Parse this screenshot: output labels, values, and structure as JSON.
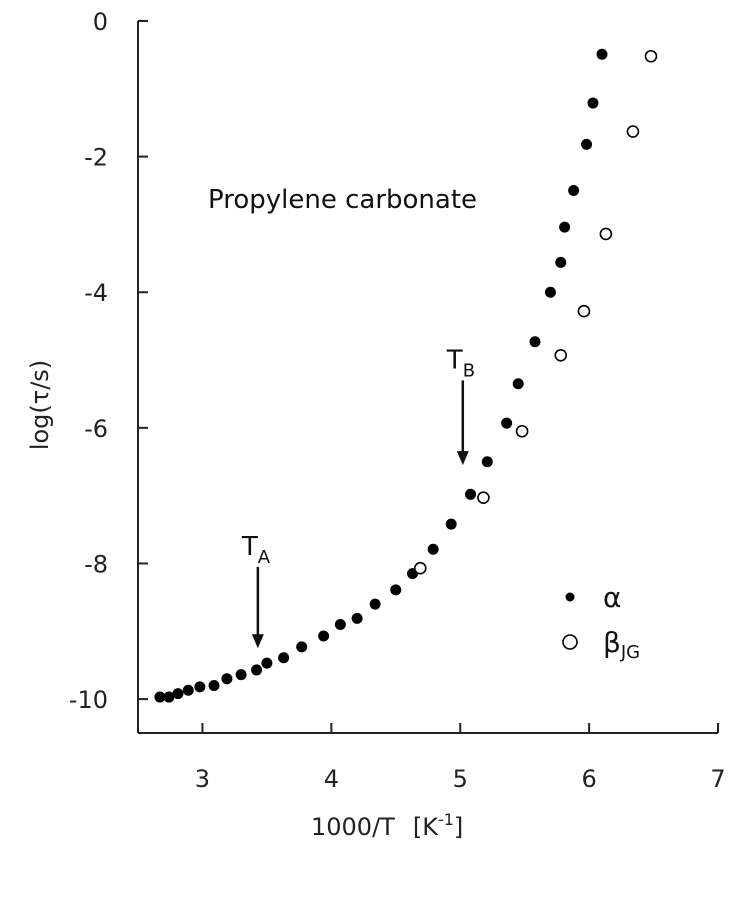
{
  "chart_data": {
    "type": "scatter",
    "title": "",
    "annotation_title": "Propylene carbonate",
    "xlabel": "1000/T",
    "xlabel_unit_base": "[K",
    "xlabel_unit_exp": "-1",
    "xlabel_unit_close": "]",
    "ylabel": "log(τ/s)",
    "xlim": [
      2.5,
      7
    ],
    "ylim": [
      -10.5,
      0
    ],
    "x_ticks": [
      3,
      4,
      5,
      6,
      7
    ],
    "y_ticks": [
      0,
      -2,
      -4,
      -6,
      -8,
      -10
    ],
    "x_tick_labels": [
      "3",
      "4",
      "5",
      "6",
      "7"
    ],
    "y_tick_labels": [
      "0",
      "-2",
      "-4",
      "-6",
      "-8",
      "-10"
    ],
    "grid": false,
    "legend_position": "lower-right",
    "series": [
      {
        "name": "α",
        "marker": "filled-circle",
        "color": "#000000",
        "points": [
          [
            2.67,
            -9.97
          ],
          [
            2.74,
            -9.97
          ],
          [
            2.81,
            -9.92
          ],
          [
            2.89,
            -9.87
          ],
          [
            2.98,
            -9.82
          ],
          [
            3.09,
            -9.8
          ],
          [
            3.19,
            -9.7
          ],
          [
            3.3,
            -9.64
          ],
          [
            3.42,
            -9.57
          ],
          [
            3.5,
            -9.47
          ],
          [
            3.63,
            -9.39
          ],
          [
            3.77,
            -9.23
          ],
          [
            3.94,
            -9.07
          ],
          [
            4.07,
            -8.9
          ],
          [
            4.2,
            -8.81
          ],
          [
            4.34,
            -8.6
          ],
          [
            4.5,
            -8.39
          ],
          [
            4.63,
            -8.15
          ],
          [
            4.79,
            -7.79
          ],
          [
            4.93,
            -7.42
          ],
          [
            5.08,
            -6.98
          ],
          [
            5.21,
            -6.5
          ],
          [
            5.36,
            -5.93
          ],
          [
            5.45,
            -5.35
          ],
          [
            5.58,
            -4.73
          ],
          [
            5.7,
            -4.0
          ],
          [
            5.78,
            -3.56
          ],
          [
            5.81,
            -3.04
          ],
          [
            5.88,
            -2.5
          ],
          [
            5.98,
            -1.82
          ],
          [
            6.03,
            -1.21
          ],
          [
            6.1,
            -0.49
          ]
        ]
      },
      {
        "name": "β",
        "name_sub": "JG",
        "marker": "open-circle",
        "color": "#000000",
        "points": [
          [
            4.69,
            -8.07
          ],
          [
            5.18,
            -7.03
          ],
          [
            5.48,
            -6.05
          ],
          [
            5.78,
            -4.93
          ],
          [
            5.96,
            -4.28
          ],
          [
            6.13,
            -3.14
          ],
          [
            6.34,
            -1.63
          ],
          [
            6.48,
            -0.52
          ]
        ]
      }
    ],
    "arrows": [
      {
        "label": "T",
        "label_sub": "A",
        "x": 3.43,
        "y_start": -8.05,
        "y_end": -9.25
      },
      {
        "label": "T",
        "label_sub": "B",
        "x": 5.02,
        "y_start": -5.3,
        "y_end": -6.55
      }
    ]
  }
}
